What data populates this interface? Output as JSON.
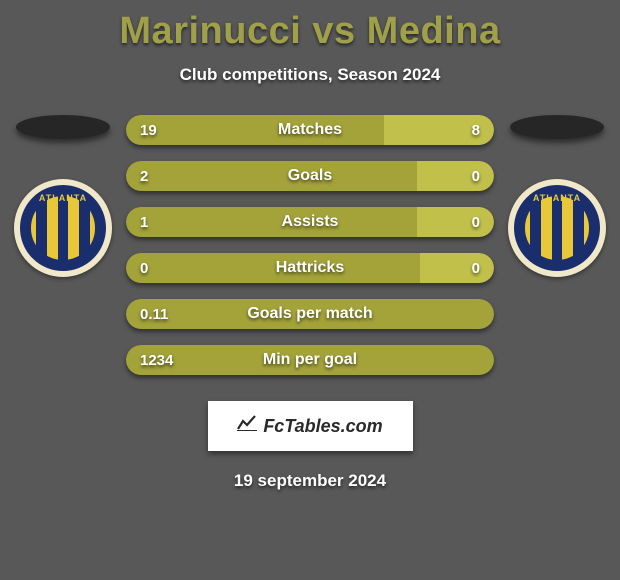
{
  "title": "Marinucci vs Medina",
  "subtitle": "Club competitions, Season 2024",
  "date": "19 september 2024",
  "footer_brand": "FcTables.com",
  "colors": {
    "background": "#585858",
    "title": "#9fa049",
    "text": "#ffffff",
    "bar_left": "#a3a33a",
    "bar_right": "#c0c04a",
    "bar_full": "#a3a33a",
    "ellipse": "#262626",
    "badge_bg": "#f0e8c8",
    "badge_blue": "#1a2e6e",
    "badge_yellow": "#e8c838"
  },
  "left_club": "ATLANTA",
  "right_club": "ATLANTA",
  "bars": [
    {
      "label": "Matches",
      "left_value": "19",
      "right_value": "8",
      "left_pct": 70,
      "right_pct": 30,
      "two_segments": true
    },
    {
      "label": "Goals",
      "left_value": "2",
      "right_value": "0",
      "left_pct": 79,
      "right_pct": 21,
      "two_segments": true
    },
    {
      "label": "Assists",
      "left_value": "1",
      "right_value": "0",
      "left_pct": 79,
      "right_pct": 21,
      "two_segments": true
    },
    {
      "label": "Hattricks",
      "left_value": "0",
      "right_value": "0",
      "left_pct": 80,
      "right_pct": 20,
      "two_segments": true
    },
    {
      "label": "Goals per match",
      "left_value": "0.11",
      "right_value": "",
      "left_pct": 100,
      "right_pct": 0,
      "two_segments": false
    },
    {
      "label": "Min per goal",
      "left_value": "1234",
      "right_value": "",
      "left_pct": 100,
      "right_pct": 0,
      "two_segments": false
    }
  ]
}
